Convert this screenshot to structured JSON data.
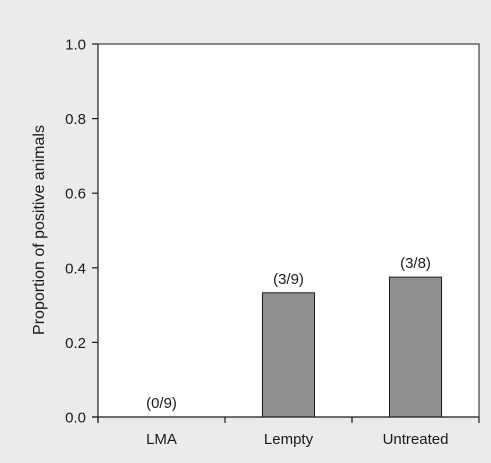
{
  "chart_data": {
    "type": "bar",
    "categories": [
      "LMA",
      "Lempty",
      "Untreated"
    ],
    "values": [
      0.0,
      0.333,
      0.375
    ],
    "data_labels": [
      "(0/9)",
      "(3/9)",
      "(3/8)"
    ],
    "ylabel": "Proportion of positive animals",
    "xlabel": "",
    "ylim": [
      0,
      1
    ],
    "yticks": [
      "0.0",
      "0.2",
      "0.4",
      "0.6",
      "0.8",
      "1.0"
    ],
    "grid": false,
    "colors": {
      "background": "#ebebeb",
      "plot_area": "#ffffff",
      "bar_fill": "#8f8f8f",
      "axis": "#1a1a1a"
    }
  }
}
